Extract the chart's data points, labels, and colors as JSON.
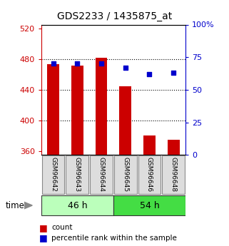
{
  "title": "GDS2233 / 1435875_at",
  "categories": [
    "GSM96642",
    "GSM96643",
    "GSM96644",
    "GSM96645",
    "GSM96646",
    "GSM96648"
  ],
  "count_values": [
    473,
    472,
    482,
    445,
    380,
    375
  ],
  "percentile_values": [
    70,
    70,
    70,
    67,
    62,
    63
  ],
  "ylim_left": [
    355,
    525
  ],
  "ylim_right": [
    0,
    100
  ],
  "yticks_left": [
    360,
    400,
    440,
    480,
    520
  ],
  "yticks_right": [
    0,
    25,
    50,
    75,
    100
  ],
  "ytick_labels_right": [
    "0",
    "25",
    "50",
    "75",
    "100%"
  ],
  "bar_color": "#cc0000",
  "dot_color": "#0000cc",
  "bar_width": 0.5,
  "group_labels": [
    "46 h",
    "54 h"
  ],
  "group_ranges": [
    [
      0,
      3
    ],
    [
      3,
      6
    ]
  ],
  "group_colors_light": [
    "#bbffbb",
    "#44dd44"
  ],
  "time_label": "time",
  "legend_entries": [
    "count",
    "percentile rank within the sample"
  ],
  "legend_colors": [
    "#cc0000",
    "#0000cc"
  ],
  "grid_yticks": [
    400,
    440,
    480
  ],
  "background_color": "#ffffff",
  "axis_label_color_left": "#cc0000",
  "axis_label_color_right": "#0000cc"
}
